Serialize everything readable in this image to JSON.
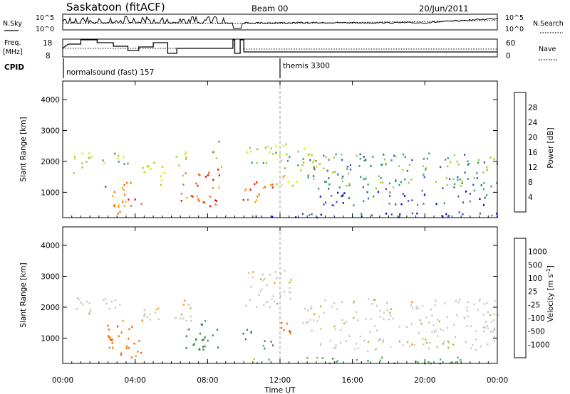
{
  "header": {
    "station": "Saskatoon (fitACF)",
    "beam": "Beam 00",
    "date": "20/Jun/2011"
  },
  "nsky_panel": {
    "left_label": "N.Sky",
    "right_label": "N.Search",
    "left_ticks": [
      "10^5",
      "10^0"
    ],
    "right_ticks": [
      "10^5",
      "10^0"
    ]
  },
  "freq_panel": {
    "left_label_1": "Freq.",
    "left_label_2": "[MHz]",
    "right_label": "Nave",
    "left_ticks": [
      "18",
      "8"
    ],
    "right_ticks": [
      "60",
      "0"
    ]
  },
  "cpid": {
    "label": "CPID",
    "programs": [
      {
        "name": "normalsound (fast) 157",
        "start_hour": 0
      },
      {
        "name": "themis 3300",
        "start_hour": 12.0
      }
    ]
  },
  "x_axis": {
    "title": "Time UT",
    "ticks": [
      "00:00",
      "04:00",
      "08:00",
      "12:00",
      "16:00",
      "20:00",
      "00:00"
    ],
    "range_hours": [
      0,
      24
    ]
  },
  "chart_data": [
    {
      "type": "heatmap",
      "name": "power",
      "ylabel": "Slant Range [km]",
      "y_ticks": [
        "1000",
        "2000",
        "3000",
        "4000"
      ],
      "ylim": [
        180,
        4600
      ],
      "colorbar": {
        "label": "Power [dB]",
        "ticks": [
          "28",
          "24",
          "20",
          "16",
          "12",
          "8",
          "4"
        ],
        "colors": [
          "#ff0000",
          "#ff6600",
          "#ffaa00",
          "#e6e600",
          "#99cc33",
          "#339966",
          "#3355bb",
          "#0000ff"
        ]
      },
      "regions": [
        {
          "t": [
            0.3,
            1.6
          ],
          "r": [
            1550,
            2450
          ],
          "level": 3
        },
        {
          "t": [
            2.1,
            3.6
          ],
          "r": [
            1800,
            2350
          ],
          "level": 3
        },
        {
          "t": [
            2.3,
            4.0
          ],
          "r": [
            550,
            1350
          ],
          "level": 6
        },
        {
          "t": [
            3.0,
            4.4
          ],
          "r": [
            300,
            650
          ],
          "level": 5
        },
        {
          "t": [
            4.3,
            5.6
          ],
          "r": [
            1250,
            2150
          ],
          "level": 4
        },
        {
          "t": [
            6.0,
            6.8
          ],
          "r": [
            1500,
            2400
          ],
          "level": 4
        },
        {
          "t": [
            6.5,
            8.8
          ],
          "r": [
            700,
            2000
          ],
          "level": 6
        },
        {
          "t": [
            7.4,
            8.5
          ],
          "r": [
            550,
            900
          ],
          "level": 7
        },
        {
          "t": [
            8.1,
            8.7
          ],
          "r": [
            1950,
            2700
          ],
          "level": 3
        },
        {
          "t": [
            9.9,
            11.7
          ],
          "r": [
            600,
            1400
          ],
          "level": 6
        },
        {
          "t": [
            9.9,
            12.4
          ],
          "r": [
            1950,
            2650
          ],
          "level": 3
        },
        {
          "t": [
            11.6,
            13.0
          ],
          "r": [
            1200,
            1600
          ],
          "level": 4
        },
        {
          "t": [
            12.2,
            14.0
          ],
          "r": [
            1700,
            2500
          ],
          "level": 3
        },
        {
          "t": [
            13.5,
            24.0
          ],
          "r": [
            1100,
            2300
          ],
          "level": 2
        },
        {
          "t": [
            14.0,
            23.5
          ],
          "r": [
            600,
            1100
          ],
          "level": 1
        },
        {
          "t": [
            10.0,
            24.0
          ],
          "r": [
            200,
            400
          ],
          "level": 1
        }
      ]
    },
    {
      "type": "heatmap",
      "name": "velocity",
      "ylabel": "Slant Range [km]",
      "y_ticks": [
        "1000",
        "2000",
        "3000",
        "4000"
      ],
      "ylim": [
        180,
        4600
      ],
      "colorbar": {
        "label": "Velocity [m s-1]",
        "ticks": [
          "1000",
          "500",
          "100",
          "25",
          "-25",
          "-100",
          "-500",
          "-1000"
        ],
        "colors": [
          "#3355bb",
          "#2d8a4e",
          "#4caf50",
          "#88cc33",
          "#c8c8c0",
          "#ff9900",
          "#ff6600",
          "#ff2200",
          "#e00000"
        ]
      },
      "regions": [
        {
          "t": [
            0.2,
            1.5
          ],
          "r": [
            1550,
            2400
          ],
          "v": -10
        },
        {
          "t": [
            2.2,
            3.4
          ],
          "r": [
            1800,
            2300
          ],
          "v": -10
        },
        {
          "t": [
            2.4,
            4.5
          ],
          "r": [
            400,
            1600
          ],
          "v": -300
        },
        {
          "t": [
            4.4,
            5.6
          ],
          "r": [
            1300,
            2100
          ],
          "v": -10
        },
        {
          "t": [
            6.1,
            7.2
          ],
          "r": [
            1300,
            2300
          ],
          "v": -10
        },
        {
          "t": [
            6.6,
            8.6
          ],
          "r": [
            650,
            1600
          ],
          "v": 300
        },
        {
          "t": [
            9.9,
            11.6
          ],
          "r": [
            650,
            1300
          ],
          "v": 300
        },
        {
          "t": [
            10.0,
            12.6
          ],
          "r": [
            2000,
            3300
          ],
          "v": -10
        },
        {
          "t": [
            11.6,
            13.2
          ],
          "r": [
            1150,
            1550
          ],
          "v": -300
        },
        {
          "t": [
            13.0,
            24.0
          ],
          "r": [
            1200,
            2300
          ],
          "v": -10
        },
        {
          "t": [
            14.0,
            23.8
          ],
          "r": [
            600,
            1100
          ],
          "v": 10
        },
        {
          "t": [
            10.0,
            24.0
          ],
          "r": [
            200,
            400
          ],
          "v": 60
        }
      ]
    }
  ]
}
